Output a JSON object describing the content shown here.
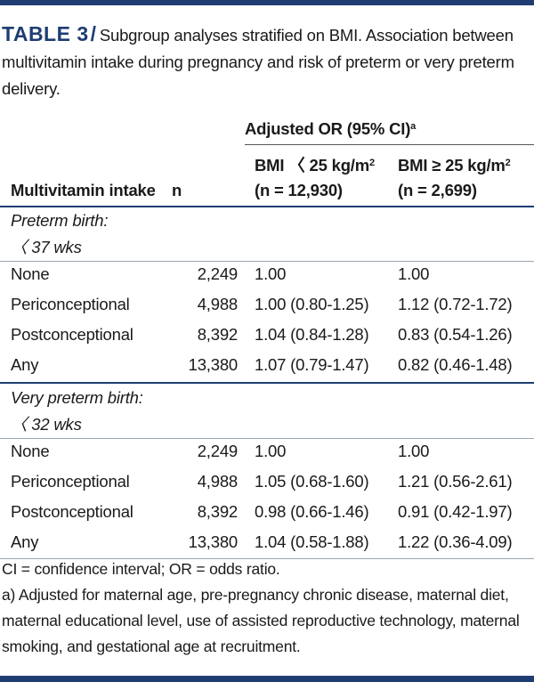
{
  "caption": {
    "label": "TABLE 3",
    "slash": "/",
    "text": "Subgroup analyses stratified on BMI. Association between multivitamin intake during pregnancy and risk of preterm or very preterm delivery."
  },
  "table": {
    "group_header": "Adjusted OR (95% CI)",
    "group_header_sup": "a",
    "columns": {
      "intake": "Multivitamin intake",
      "n": "n",
      "bmi_low_line1": "BMI 〈 25 kg/m",
      "bmi_low_sup": "2",
      "bmi_low_line2": "(n = 12,930)",
      "bmi_high_line1": "BMI ≥ 25 kg/m",
      "bmi_high_sup": "2",
      "bmi_high_line2": "(n = 2,699)"
    },
    "sections": [
      {
        "title_line1": "Preterm birth:",
        "title_line2": "〈 37 wks",
        "rows": [
          {
            "name": "None",
            "n": "2,249",
            "a": "1.00",
            "b": "1.00"
          },
          {
            "name": "Periconceptional",
            "n": "4,988",
            "a": "1.00 (0.80-1.25)",
            "b": "1.12 (0.72-1.72)"
          },
          {
            "name": "Postconceptional",
            "n": "8,392",
            "a": "1.04 (0.84-1.28)",
            "b": "0.83 (0.54-1.26)"
          },
          {
            "name": "Any",
            "n": "13,380",
            "a": "1.07 (0.79-1.47)",
            "b": "0.82 (0.46-1.48)"
          }
        ]
      },
      {
        "title_line1": "Very preterm birth:",
        "title_line2": "〈 32 wks",
        "rows": [
          {
            "name": "None",
            "n": "2,249",
            "a": "1.00",
            "b": "1.00"
          },
          {
            "name": "Periconceptional",
            "n": "4,988",
            "a": "1.05 (0.68-1.60)",
            "b": "1.21 (0.56-2.61)"
          },
          {
            "name": "Postconceptional",
            "n": "8,392",
            "a": "0.98 (0.66-1.46)",
            "b": "0.91 (0.42-1.97)"
          },
          {
            "name": "Any",
            "n": "13,380",
            "a": "1.04 (0.58-1.88)",
            "b": "1.22 (0.36-4.09)"
          }
        ]
      }
    ]
  },
  "notes": {
    "abbrev": "CI = confidence interval; OR = odds ratio.",
    "footnote_a": "a) Adjusted for maternal age, pre-pregnancy chronic disease, maternal diet, maternal educational level, use of assisted reproductive technology, maternal smoking, and gestational age at recruitment."
  },
  "colors": {
    "accent": "#1f3d72"
  }
}
